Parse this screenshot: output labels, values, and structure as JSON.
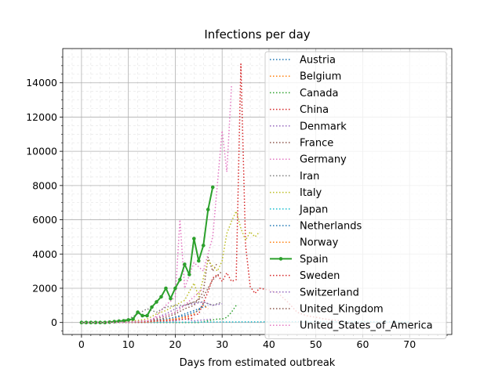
{
  "chart_data": {
    "type": "line",
    "title": "Infections per day",
    "xlabel": "Days from estimated outbreak",
    "ylabel": "",
    "xlim": [
      -4,
      79
    ],
    "ylim": [
      -700,
      16000
    ],
    "xticks": [
      0,
      10,
      20,
      30,
      40,
      50,
      60,
      70
    ],
    "yticks": [
      0,
      2000,
      4000,
      6000,
      8000,
      10000,
      12000,
      14000
    ],
    "xtick_labels": [
      "0",
      "10",
      "20",
      "30",
      "40",
      "50",
      "60",
      "70"
    ],
    "ytick_labels": [
      "0",
      "2000",
      "4000",
      "6000",
      "8000",
      "10000",
      "12000",
      "14000"
    ],
    "grid": true,
    "legend_position": "right",
    "series": [
      {
        "name": "Austria",
        "color": "#1f77b4",
        "style": "dotted",
        "x": [
          0,
          2,
          4,
          6,
          8,
          10,
          12,
          14,
          16,
          18,
          20,
          21,
          22,
          23,
          24,
          25,
          26,
          27
        ],
        "y": [
          0,
          0,
          0,
          5,
          10,
          20,
          40,
          80,
          150,
          200,
          300,
          400,
          500,
          600,
          700,
          800,
          900,
          1000
        ]
      },
      {
        "name": "Belgium",
        "color": "#ff7f0e",
        "style": "dotted",
        "x": [
          0,
          2,
          4,
          6,
          8,
          10,
          12,
          14,
          16,
          18,
          20,
          22,
          24,
          26,
          27
        ],
        "y": [
          0,
          0,
          0,
          0,
          0,
          0,
          0,
          0,
          50,
          100,
          200,
          300,
          500,
          1000,
          800
        ]
      },
      {
        "name": "Canada",
        "color": "#2ca02c",
        "style": "dotted",
        "x": [
          0,
          5,
          10,
          15,
          20,
          25,
          27,
          28,
          29,
          30,
          31,
          32,
          33
        ],
        "y": [
          0,
          0,
          0,
          0,
          0,
          0,
          100,
          150,
          200,
          200,
          300,
          600,
          1000
        ]
      },
      {
        "name": "China",
        "color": "#d62728",
        "style": "dotted",
        "x": [
          0,
          5,
          10,
          15,
          20,
          25,
          27,
          28,
          29,
          30,
          31,
          32,
          33,
          34,
          35,
          36,
          37,
          38,
          40,
          42,
          44,
          46,
          48,
          50,
          52,
          55
        ],
        "y": [
          0,
          10,
          50,
          100,
          200,
          500,
          1800,
          2600,
          2800,
          2400,
          2900,
          2400,
          2500,
          15100,
          4500,
          2100,
          1700,
          2000,
          1900,
          1700,
          1200,
          600,
          400,
          300,
          200,
          100
        ]
      },
      {
        "name": "Denmark",
        "color": "#9467bd",
        "style": "dotted",
        "x": [
          0,
          5,
          10,
          14,
          16,
          18,
          20,
          22,
          24,
          26,
          28
        ],
        "y": [
          0,
          0,
          0,
          0,
          20,
          60,
          100,
          200,
          100,
          150,
          200
        ]
      },
      {
        "name": "France",
        "color": "#8c564b",
        "style": "dotted",
        "x": [
          0,
          5,
          10,
          14,
          16,
          18,
          20,
          22,
          24,
          26,
          27,
          28,
          29
        ],
        "y": [
          0,
          0,
          0,
          20,
          100,
          300,
          500,
          800,
          1000,
          1800,
          3800,
          3000,
          3500
        ]
      },
      {
        "name": "Germany",
        "color": "#e377c2",
        "style": "dotted",
        "x": [
          0,
          5,
          10,
          15,
          18,
          20,
          21,
          22,
          24,
          26,
          28,
          30,
          31,
          32
        ],
        "y": [
          0,
          0,
          0,
          100,
          1000,
          1500,
          6000,
          2000,
          3500,
          3000,
          5000,
          11200,
          8800,
          13800
        ]
      },
      {
        "name": "Iran",
        "color": "#7f7f7f",
        "style": "dotted",
        "x": [
          0,
          4,
          8,
          10,
          12,
          14,
          16,
          18,
          20,
          22,
          24,
          26,
          28,
          30
        ],
        "y": [
          0,
          0,
          50,
          200,
          500,
          800,
          600,
          900,
          1000,
          1000,
          1200,
          1200,
          1000,
          1200
        ]
      },
      {
        "name": "Italy",
        "color": "#bcbd22",
        "style": "dotted",
        "x": [
          0,
          5,
          10,
          14,
          16,
          18,
          20,
          22,
          24,
          25,
          26,
          27,
          28,
          29,
          30,
          31,
          32,
          33,
          34,
          35,
          36,
          37,
          38
        ],
        "y": [
          0,
          0,
          50,
          200,
          500,
          700,
          1000,
          1300,
          2300,
          1500,
          2600,
          3600,
          3300,
          3000,
          3600,
          5200,
          5900,
          6500,
          5500,
          4800,
          5300,
          5000,
          5300
        ]
      },
      {
        "name": "Japan",
        "color": "#17becf",
        "style": "dotted",
        "x": [
          0,
          10,
          20,
          30,
          40,
          50,
          60,
          70
        ],
        "y": [
          0,
          10,
          20,
          30,
          40,
          50,
          40,
          30
        ]
      },
      {
        "name": "Netherlands",
        "color": "#1f77b4",
        "style": "dotted",
        "x": [
          0,
          5,
          10,
          14,
          16,
          18,
          20,
          22,
          24,
          25,
          26
        ],
        "y": [
          0,
          0,
          0,
          20,
          100,
          200,
          300,
          400,
          600,
          700,
          1100
        ]
      },
      {
        "name": "Norway",
        "color": "#ff7f0e",
        "style": "dotted",
        "x": [
          0,
          5,
          10,
          14,
          16,
          18,
          20,
          22,
          24
        ],
        "y": [
          0,
          0,
          0,
          20,
          80,
          150,
          200,
          300,
          200
        ]
      },
      {
        "name": "Spain",
        "color": "#2ca02c",
        "style": "solid-marker",
        "x": [
          0,
          1,
          2,
          3,
          4,
          5,
          6,
          7,
          8,
          9,
          10,
          11,
          12,
          13,
          14,
          15,
          16,
          17,
          18,
          19,
          20,
          21,
          22,
          23,
          24,
          25,
          26,
          27,
          28
        ],
        "y": [
          0,
          0,
          0,
          0,
          0,
          0,
          20,
          50,
          80,
          100,
          150,
          200,
          600,
          400,
          400,
          900,
          1200,
          1500,
          2000,
          1400,
          2000,
          2500,
          3400,
          2800,
          4900,
          3600,
          4500,
          6600,
          7900
        ]
      },
      {
        "name": "Sweden",
        "color": "#d62728",
        "style": "dotted",
        "x": [
          0,
          5,
          10,
          14,
          16,
          18,
          20,
          22,
          24
        ],
        "y": [
          0,
          0,
          10,
          50,
          100,
          100,
          150,
          200,
          250
        ]
      },
      {
        "name": "Switzerland",
        "color": "#9467bd",
        "style": "dotted",
        "x": [
          0,
          5,
          10,
          14,
          16,
          18,
          20,
          22,
          24,
          26,
          28,
          30
        ],
        "y": [
          0,
          0,
          10,
          100,
          300,
          500,
          800,
          1000,
          1100,
          1200,
          1000,
          1100
        ]
      },
      {
        "name": "United_Kingdom",
        "color": "#8c564b",
        "style": "dotted",
        "x": [
          0,
          5,
          10,
          14,
          16,
          18,
          20,
          22,
          24,
          26,
          28,
          30
        ],
        "y": [
          0,
          0,
          20,
          100,
          200,
          400,
          600,
          1000,
          1200,
          1500,
          2500,
          3000
        ]
      },
      {
        "name": "United_States_of_America",
        "color": "#e377c2",
        "style": "dotted",
        "x": [
          0,
          5,
          10,
          14,
          16,
          18,
          20,
          22,
          24,
          26
        ],
        "y": [
          0,
          0,
          20,
          100,
          300,
          400,
          600,
          1000,
          1500,
          2000
        ]
      }
    ]
  }
}
